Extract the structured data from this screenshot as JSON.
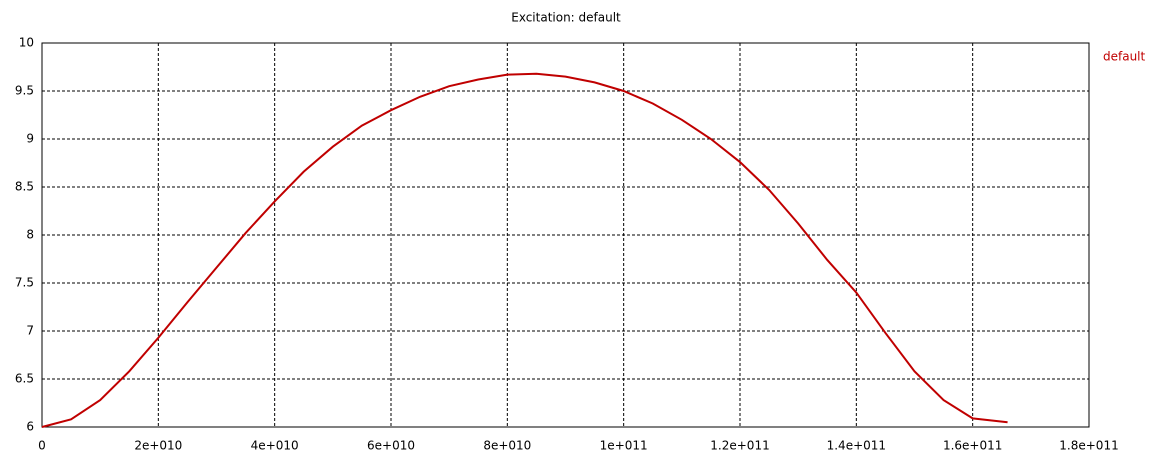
{
  "chart_data": {
    "type": "line",
    "title": "Excitation: default",
    "x": [
      0,
      5000000000.0,
      10000000000.0,
      15000000000.0,
      20000000000.0,
      25000000000.0,
      30000000000.0,
      35000000000.0,
      40000000000.0,
      45000000000.0,
      50000000000.0,
      55000000000.0,
      60000000000.0,
      65000000000.0,
      70000000000.0,
      75000000000.0,
      80000000000.0,
      85000000000.0,
      90000000000.0,
      95000000000.0,
      100000000000.0,
      105000000000.0,
      110000000000.0,
      115000000000.0,
      120000000000.0,
      125000000000.0,
      130000000000.0,
      135000000000.0,
      140000000000.0,
      145000000000.0,
      150000000000.0,
      155000000000.0,
      160000000000.0,
      166000000000.0
    ],
    "series": [
      {
        "name": "default",
        "color": "#c00000",
        "values": [
          6.0,
          6.08,
          6.28,
          6.58,
          6.93,
          7.3,
          7.66,
          8.02,
          8.35,
          8.66,
          8.92,
          9.14,
          9.3,
          9.44,
          9.55,
          9.62,
          9.67,
          9.68,
          9.65,
          9.59,
          9.5,
          9.37,
          9.2,
          9.0,
          8.76,
          8.47,
          8.12,
          7.74,
          7.4,
          6.98,
          6.58,
          6.28,
          6.09,
          6.05
        ]
      }
    ],
    "xlim": [
      0,
      180000000000.0
    ],
    "ylim": [
      6,
      10
    ],
    "xticks": [
      0,
      {
        "value": 20000000000.0,
        "label": "2e+010"
      },
      {
        "value": 40000000000.0,
        "label": "4e+010"
      },
      {
        "value": 60000000000.0,
        "label": "6e+010"
      },
      {
        "value": 80000000000.0,
        "label": "8e+010"
      },
      {
        "value": 100000000000.0,
        "label": "1e+011"
      },
      {
        "value": 120000000000.0,
        "label": "1.2e+011"
      },
      {
        "value": 140000000000.0,
        "label": "1.4e+011"
      },
      {
        "value": 160000000000.0,
        "label": "1.6e+011"
      },
      {
        "value": 180000000000.0,
        "label": "1.8e+011"
      }
    ],
    "yticks": [
      6,
      6.5,
      7,
      7.5,
      8,
      8.5,
      9,
      9.5,
      10
    ],
    "grid": true,
    "legend": "right"
  }
}
